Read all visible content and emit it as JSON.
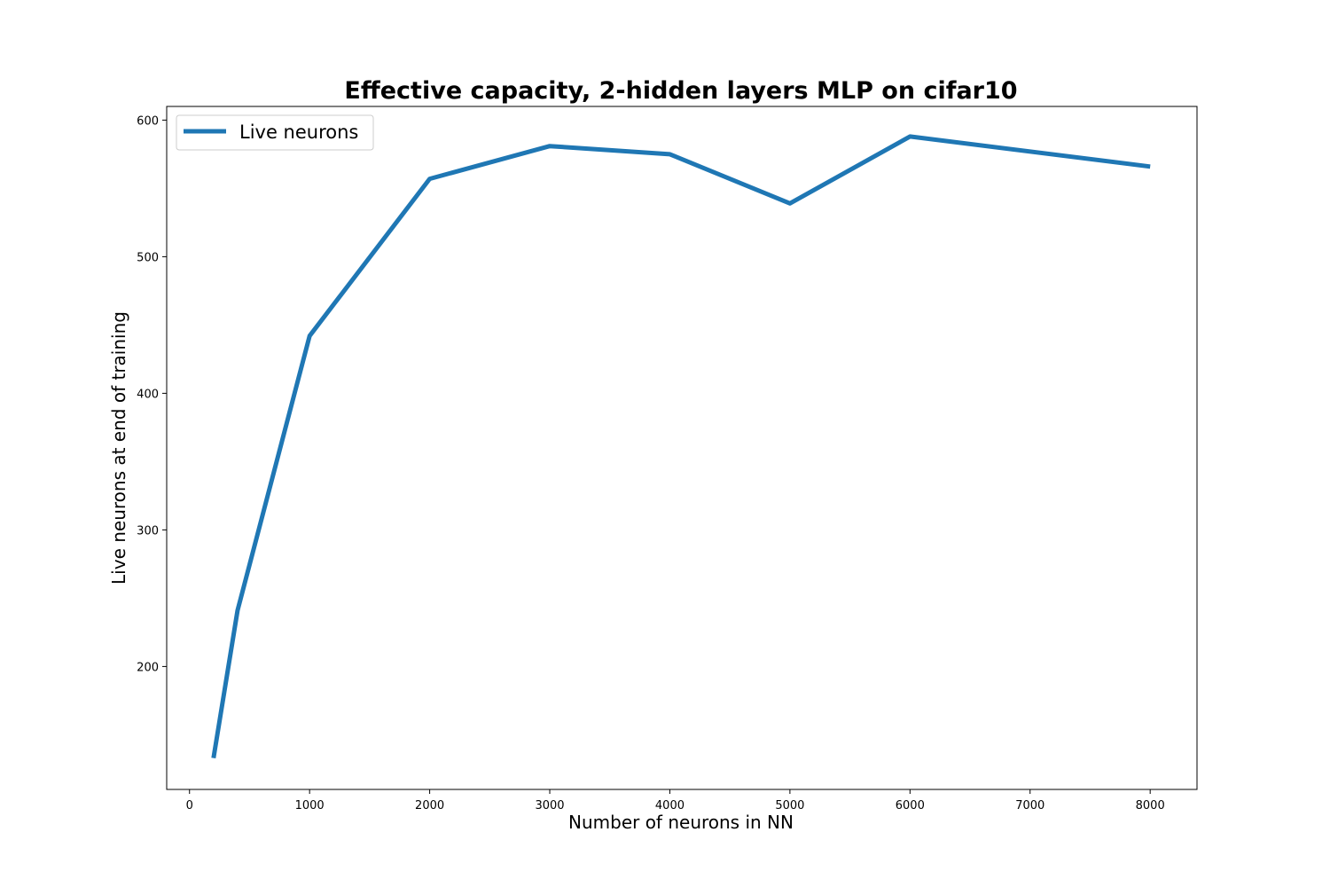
{
  "chart_data": {
    "type": "line",
    "title": "Effective capacity, 2-hidden layers MLP on cifar10",
    "xlabel": "Number of neurons in NN",
    "ylabel": "Live neurons at end of training",
    "xlim": [
      -190,
      8390
    ],
    "ylim": [
      110,
      610
    ],
    "xticks": [
      0,
      1000,
      2000,
      3000,
      4000,
      5000,
      6000,
      7000,
      8000
    ],
    "yticks": [
      200,
      300,
      400,
      500,
      600
    ],
    "grid": false,
    "legend_position": "top-left",
    "series": [
      {
        "name": "Live neurons",
        "color": "#1f77b4",
        "x": [
          200,
          400,
          1000,
          2000,
          3000,
          4000,
          5000,
          6000,
          8000
        ],
        "y": [
          133,
          241,
          442,
          557,
          581,
          575,
          539,
          588,
          566
        ]
      }
    ]
  }
}
